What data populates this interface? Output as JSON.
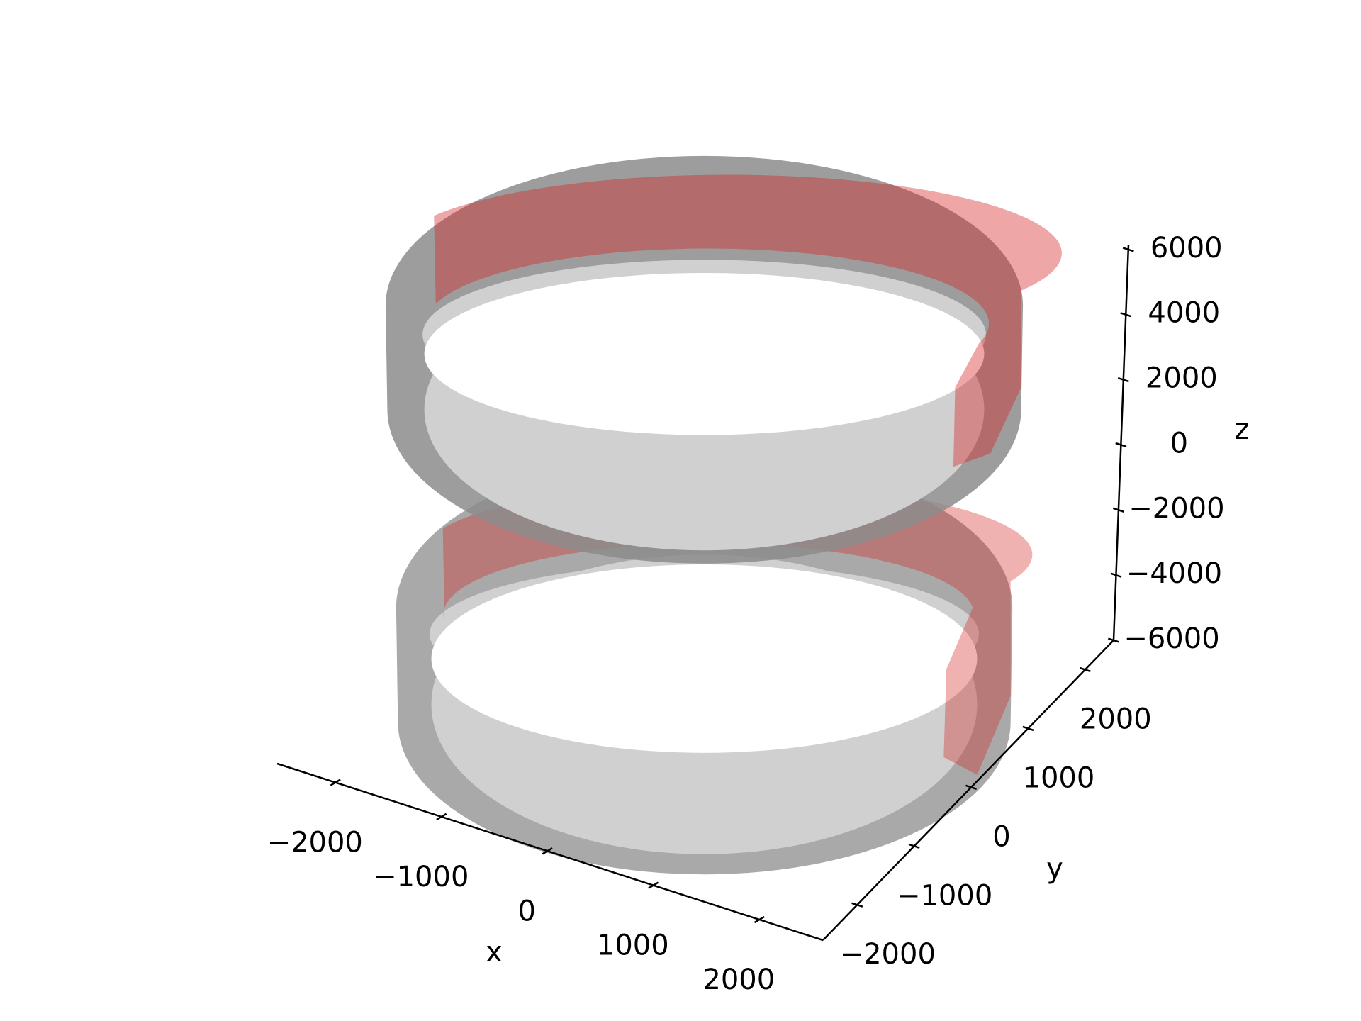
{
  "chart_data": {
    "type": "3d",
    "xlabel": "x",
    "ylabel": "y",
    "zlabel": "z",
    "xlim": [
      -2550,
      2600
    ],
    "ylim": [
      -2600,
      2500
    ],
    "zlim": [
      -6000,
      6150
    ],
    "xticks": [
      {
        "value": -2000,
        "label": "−2000"
      },
      {
        "value": -1000,
        "label": "−1000"
      },
      0,
      1000,
      2000
    ],
    "yticks": [
      {
        "value": -2000,
        "label": "−2000"
      },
      {
        "value": -1000,
        "label": "−1000"
      },
      0,
      1000,
      2000
    ],
    "zticks": [
      {
        "value": -6000,
        "label": "−6000"
      },
      {
        "value": -4000,
        "label": "−4000"
      },
      {
        "value": -2000,
        "label": "−2000"
      },
      0,
      2000,
      4000,
      6000
    ]
  }
}
